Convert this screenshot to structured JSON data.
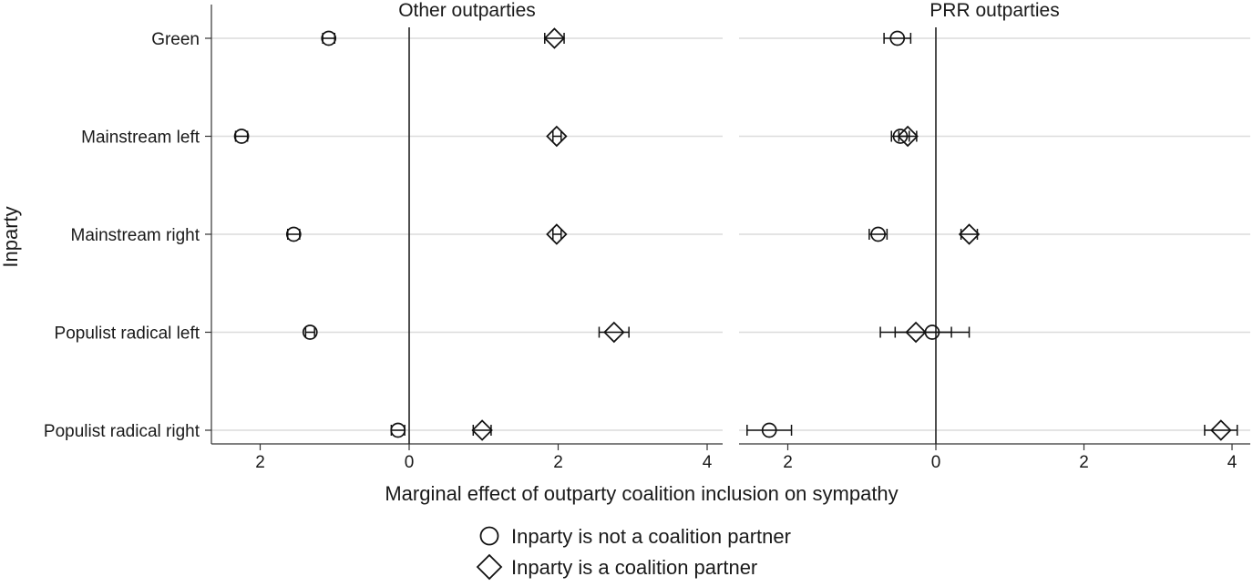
{
  "chart_data": {
    "type": "scatter",
    "ylabel": "Inparty",
    "xlabel": "Marginal effect of outparty coalition inclusion on sympathy",
    "categories": [
      "Green",
      "Mainstream left",
      "Mainstream right",
      "Populist radical left",
      "Populist radical right"
    ],
    "x_ticks": [
      -2,
      0,
      2,
      4
    ],
    "x_tick_labels": [
      "2",
      "0",
      "2",
      "4"
    ],
    "xlim": [
      -2.65,
      4.1
    ],
    "grid": true,
    "legend_position": "bottom",
    "series_meta": [
      {
        "name": "Inparty is not a coalition partner",
        "marker": "circle"
      },
      {
        "name": "Inparty is a coalition partner",
        "marker": "diamond"
      }
    ],
    "panels": [
      {
        "title": "Other outparties",
        "series": [
          {
            "name": "Inparty is not a coalition partner",
            "values": [
              -1.08,
              -2.25,
              -1.55,
              -1.33,
              -0.15
            ],
            "ci_low": [
              -1.16,
              -2.33,
              -1.63,
              -1.39,
              -0.24
            ],
            "ci_high": [
              -1.0,
              -2.17,
              -1.47,
              -1.27,
              -0.06
            ]
          },
          {
            "name": "Inparty is a coalition partner",
            "values": [
              1.95,
              1.98,
              1.98,
              2.75,
              0.98
            ],
            "ci_low": [
              1.82,
              1.93,
              1.93,
              2.55,
              0.86
            ],
            "ci_high": [
              2.08,
              2.04,
              2.04,
              2.95,
              1.1
            ]
          }
        ]
      },
      {
        "title": "PRR outparties",
        "series": [
          {
            "name": "Inparty is not a coalition partner",
            "values": [
              -0.52,
              -0.48,
              -0.78,
              -0.05,
              -2.25
            ],
            "ci_low": [
              -0.7,
              -0.6,
              -0.9,
              -0.55,
              -2.55
            ],
            "ci_high": [
              -0.34,
              -0.36,
              -0.66,
              0.45,
              -1.95
            ]
          },
          {
            "name": "Inparty is a coalition partner",
            "values": [
              null,
              -0.38,
              0.45,
              -0.27,
              3.85
            ],
            "ci_low": [
              null,
              -0.5,
              0.34,
              -0.75,
              3.63
            ],
            "ci_high": [
              null,
              -0.26,
              0.56,
              0.21,
              4.07
            ]
          }
        ]
      }
    ]
  },
  "legend": {
    "items": [
      {
        "label": "Inparty is not a coalition partner",
        "marker": "circle"
      },
      {
        "label": "Inparty is a coalition partner",
        "marker": "diamond"
      }
    ]
  }
}
